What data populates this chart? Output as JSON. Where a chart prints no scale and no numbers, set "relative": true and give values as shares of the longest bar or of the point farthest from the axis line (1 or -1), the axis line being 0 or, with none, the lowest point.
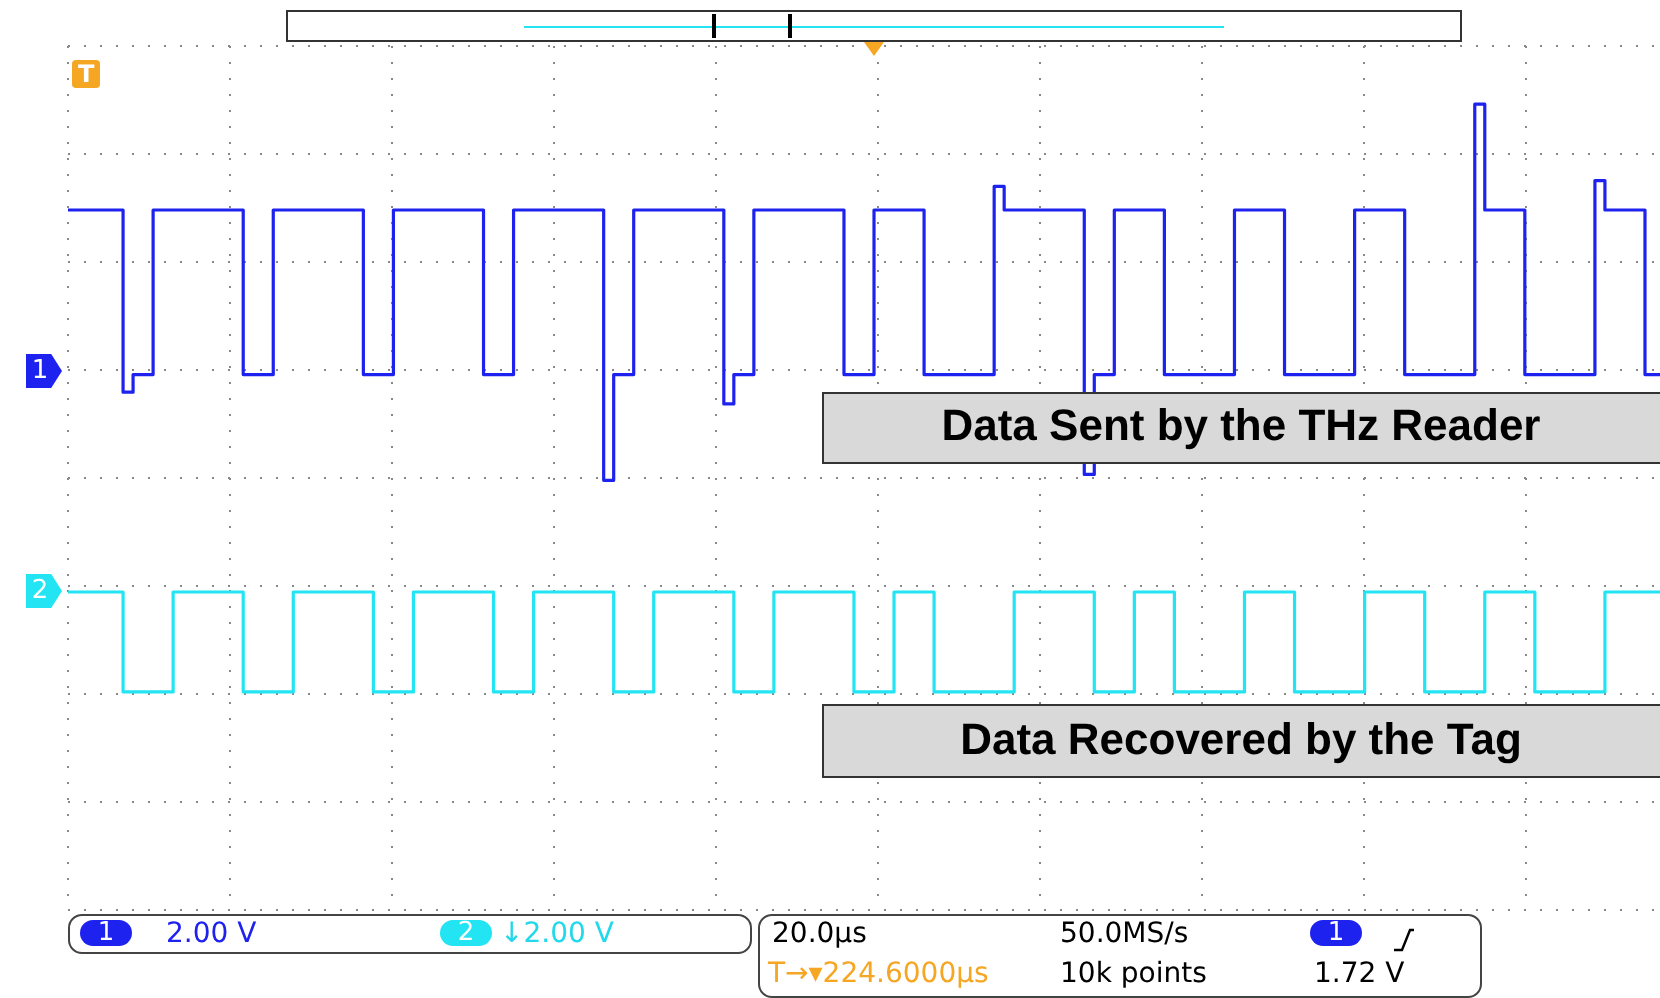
{
  "chart_data": {
    "type": "step",
    "relative": true,
    "grid": true,
    "marker": "none",
    "legend": "left",
    "categories": [
      null,
      null,
      null,
      null,
      null,
      null,
      null,
      null,
      null,
      null,
      null,
      null,
      null,
      null,
      null,
      null,
      null,
      null,
      null,
      null,
      null,
      null,
      null,
      null,
      null,
      null,
      null,
      null,
      null,
      null,
      null,
      null,
      null,
      null,
      null,
      null,
      null,
      null,
      null,
      null,
      null,
      null,
      null,
      null,
      null,
      null,
      null,
      null,
      null,
      null,
      null,
      null,
      null,
      null,
      null,
      null,
      null,
      null,
      null,
      null,
      null,
      null,
      null,
      null,
      null,
      null,
      null,
      null,
      null,
      null,
      null,
      null,
      null,
      null,
      null,
      null,
      null,
      null,
      null,
      null,
      null,
      null,
      null,
      null,
      null,
      null,
      null,
      null,
      null,
      null,
      null,
      null,
      null,
      null,
      null,
      null,
      null,
      null,
      null,
      null,
      null,
      null,
      null,
      null,
      null,
      null,
      null,
      null,
      null,
      null,
      null,
      null,
      null,
      null,
      null,
      null,
      null,
      null,
      null,
      null,
      null,
      null,
      null,
      null,
      null,
      null,
      null,
      null,
      null,
      null,
      null,
      null,
      null,
      null,
      null,
      null,
      null,
      null,
      null,
      null,
      null,
      null,
      null,
      null,
      null,
      null,
      null,
      null,
      null,
      null,
      null,
      null,
      null,
      null,
      null,
      null,
      null,
      null,
      null,
      null
    ],
    "series": [
      {
        "name": "1",
        "color": "#1e22ee",
        "values": [
          0.82,
          0.82,
          0.82,
          0.82,
          0.82,
          0.82,
          0.51,
          0.54,
          0.54,
          0.82,
          0.82,
          0.82,
          0.82,
          0.82,
          0.82,
          0.82,
          0.82,
          0.82,
          0.54,
          0.54,
          0.54,
          0.82,
          0.82,
          0.82,
          0.82,
          0.82,
          0.82,
          0.82,
          0.82,
          0.82,
          0.54,
          0.54,
          0.54,
          0.82,
          0.82,
          0.82,
          0.82,
          0.82,
          0.82,
          0.82,
          0.82,
          0.82,
          0.54,
          0.54,
          0.54,
          0.82,
          0.82,
          0.82,
          0.82,
          0.82,
          0.82,
          0.82,
          0.82,
          0.82,
          0.36,
          0.54,
          0.54,
          0.82,
          0.82,
          0.82,
          0.82,
          0.82,
          0.82,
          0.82,
          0.82,
          0.82,
          0.49,
          0.54,
          0.54,
          0.82,
          0.82,
          0.82,
          0.82,
          0.82,
          0.82,
          0.82,
          0.82,
          0.82,
          0.54,
          0.54,
          0.54,
          0.82,
          0.82,
          0.82,
          0.82,
          0.82,
          0.54,
          0.54,
          0.54,
          0.54,
          0.54,
          0.54,
          0.54,
          0.86,
          0.82,
          0.82,
          0.82,
          0.82,
          0.82,
          0.82,
          0.82,
          0.82,
          0.37,
          0.54,
          0.54,
          0.82,
          0.82,
          0.82,
          0.82,
          0.82,
          0.54,
          0.54,
          0.54,
          0.54,
          0.54,
          0.54,
          0.54,
          0.82,
          0.82,
          0.82,
          0.82,
          0.82,
          0.54,
          0.54,
          0.54,
          0.54,
          0.54,
          0.54,
          0.54,
          0.82,
          0.82,
          0.82,
          0.82,
          0.82,
          0.54,
          0.54,
          0.54,
          0.54,
          0.54,
          0.54,
          0.54,
          1,
          0.82,
          0.82,
          0.82,
          0.82,
          0.54,
          0.54,
          0.54,
          0.54,
          0.54,
          0.54,
          0.54,
          0.87,
          0.82,
          0.82,
          0.82,
          0.82,
          0.54,
          0.54
        ]
      },
      {
        "name": "2",
        "color": "#22e4f2",
        "values": [
          0.17,
          0.17,
          0.17,
          0.17,
          0.17,
          0.17,
          0,
          0,
          0,
          0,
          0,
          0.17,
          0.17,
          0.17,
          0.17,
          0.17,
          0.17,
          0.17,
          0,
          0,
          0,
          0,
          0,
          0.17,
          0.17,
          0.17,
          0.17,
          0.17,
          0.17,
          0.17,
          0.17,
          0,
          0,
          0,
          0,
          0.17,
          0.17,
          0.17,
          0.17,
          0.17,
          0.17,
          0.17,
          0.17,
          0,
          0,
          0,
          0,
          0.17,
          0.17,
          0.17,
          0.17,
          0.17,
          0.17,
          0.17,
          0.17,
          0,
          0,
          0,
          0,
          0.17,
          0.17,
          0.17,
          0.17,
          0.17,
          0.17,
          0.17,
          0.17,
          0,
          0,
          0,
          0,
          0.17,
          0.17,
          0.17,
          0.17,
          0.17,
          0.17,
          0.17,
          0.17,
          0,
          0,
          0,
          0,
          0.17,
          0.17,
          0.17,
          0.17,
          0,
          0,
          0,
          0,
          0,
          0,
          0,
          0,
          0.17,
          0.17,
          0.17,
          0.17,
          0.17,
          0.17,
          0.17,
          0.17,
          0,
          0,
          0,
          0,
          0.17,
          0.17,
          0.17,
          0.17,
          0,
          0,
          0,
          0,
          0,
          0,
          0,
          0.17,
          0.17,
          0.17,
          0.17,
          0.17,
          0,
          0,
          0,
          0,
          0,
          0,
          0,
          0.17,
          0.17,
          0.17,
          0.17,
          0.17,
          0.17,
          0,
          0,
          0,
          0,
          0,
          0,
          0.17,
          0.17,
          0.17,
          0.17,
          0.17,
          0,
          0,
          0,
          0,
          0,
          0,
          0,
          0.17,
          0.17,
          0.17,
          0.17,
          0.17,
          0.17
        ]
      }
    ],
    "annotations": [
      "Data Sent by the THz Reader",
      "Data Recovered by the Tag",
      "T",
      "2.00 V",
      "↓2.00 V",
      "20.0µs",
      "T→▾224.6000µs",
      "50.0MS/s",
      "10k points",
      "1.72 V"
    ]
  }
}
